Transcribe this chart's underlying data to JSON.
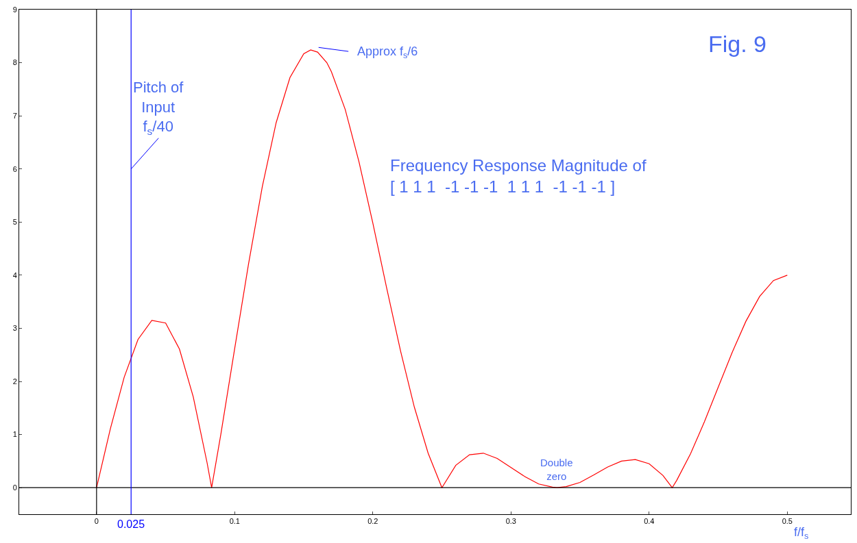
{
  "chart_data": {
    "type": "line",
    "title": "Fig. 9",
    "xlabel": "f/f$_{s}$",
    "x": [
      0,
      0.01,
      0.02,
      0.03,
      0.04,
      0.05,
      0.06,
      0.07,
      0.08,
      0.0833,
      0.09,
      0.1,
      0.11,
      0.12,
      0.13,
      0.14,
      0.15,
      0.155,
      0.16,
      0.1667,
      0.17,
      0.18,
      0.19,
      0.2,
      0.21,
      0.22,
      0.23,
      0.24,
      0.25,
      0.26,
      0.27,
      0.28,
      0.29,
      0.3,
      0.31,
      0.32,
      0.33,
      0.3333,
      0.34,
      0.35,
      0.36,
      0.37,
      0.38,
      0.39,
      0.4,
      0.41,
      0.4167,
      0.42,
      0.43,
      0.44,
      0.45,
      0.46,
      0.47,
      0.48,
      0.49,
      0.5
    ],
    "series": [
      {
        "color": "#ff0000",
        "values": [
          0,
          1.11,
          2.08,
          2.79,
          3.15,
          3.1,
          2.61,
          1.71,
          0.47,
          0,
          1.01,
          2.62,
          4.21,
          5.67,
          6.87,
          7.72,
          8.17,
          8.24,
          8.2,
          8,
          7.83,
          7.12,
          6.13,
          4.98,
          3.76,
          2.58,
          1.52,
          0.65,
          0,
          0.42,
          0.62,
          0.65,
          0.55,
          0.38,
          0.21,
          0.07,
          0.01,
          0,
          0.02,
          0.1,
          0.24,
          0.39,
          0.5,
          0.53,
          0.45,
          0.23,
          0,
          0.14,
          0.64,
          1.24,
          1.89,
          2.54,
          3.13,
          3.6,
          3.9,
          4
        ]
      }
    ],
    "xlim": [
      -0.056,
      0.546
    ],
    "ylim": [
      -0.5,
      9
    ],
    "xticks": [
      0,
      0.1,
      0.2,
      0.3,
      0.4,
      0.5
    ],
    "yticks": [
      0,
      1,
      2,
      3,
      4,
      5,
      6,
      7,
      8,
      9
    ],
    "marker": "none",
    "line_style": "solid",
    "ref_lines": [
      {
        "axis": "x",
        "value": 0,
        "color": "#000000"
      },
      {
        "axis": "y",
        "value": 0,
        "color": "#000000"
      },
      {
        "axis": "x",
        "value": 0.025,
        "label": "0.025",
        "color": "#0000ff"
      }
    ],
    "annotations": [
      {
        "text": "Pitch of\nInput\nf$_{s}$/40",
        "x": 0.025,
        "y": 6
      },
      "Approx f$_{s}$/6",
      "Frequency Response Magnitude of\n[ 1 1 1  -1 -1 -1  1 1 1  -1 -1 -1 ]",
      {
        "text": "Double\nzero",
        "x": 0.3333,
        "y": 0
      }
    ]
  }
}
